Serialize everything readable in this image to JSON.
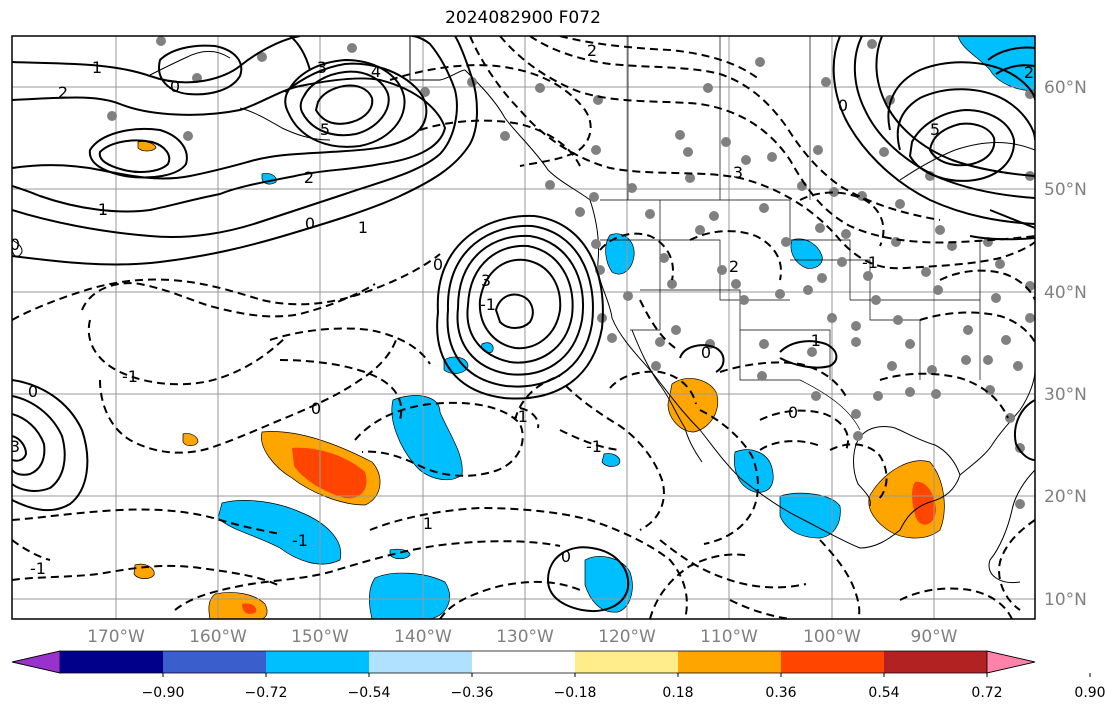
{
  "map": {
    "title": "2024082900 F072",
    "lat_labels": [
      "60°N",
      "50°N",
      "40°N",
      "30°N",
      "20°N",
      "10°N"
    ],
    "lon_labels": [
      "170°W",
      "160°W",
      "150°W",
      "140°W",
      "130°W",
      "120°W",
      "110°W",
      "100°W",
      "90°W"
    ],
    "contour_labels": [
      "1",
      "2",
      "0",
      "3",
      "4",
      "5",
      "2",
      "1",
      "0",
      "2",
      "0",
      "1",
      "-1",
      "0",
      "3",
      "-1",
      "0",
      "-1",
      "-1",
      "-1",
      "0",
      "-1",
      "1",
      "0",
      "2",
      "3",
      "0",
      "5",
      "2",
      "0",
      "-1",
      "-1",
      "3",
      "0"
    ]
  },
  "colorbar": {
    "tick_labels": [
      "−0.90",
      "−0.72",
      "−0.54",
      "−0.36",
      "−0.18",
      "0.18",
      "0.36",
      "0.54",
      "0.72",
      "0.90"
    ],
    "colors": [
      "#9932cc",
      "#00008b",
      "#3a5fcd",
      "#00bfff",
      "#b0e2ff",
      "#ffffff",
      "#ffec8b",
      "#ffa500",
      "#ff4500",
      "#b22222",
      "#ff82ab"
    ]
  }
}
